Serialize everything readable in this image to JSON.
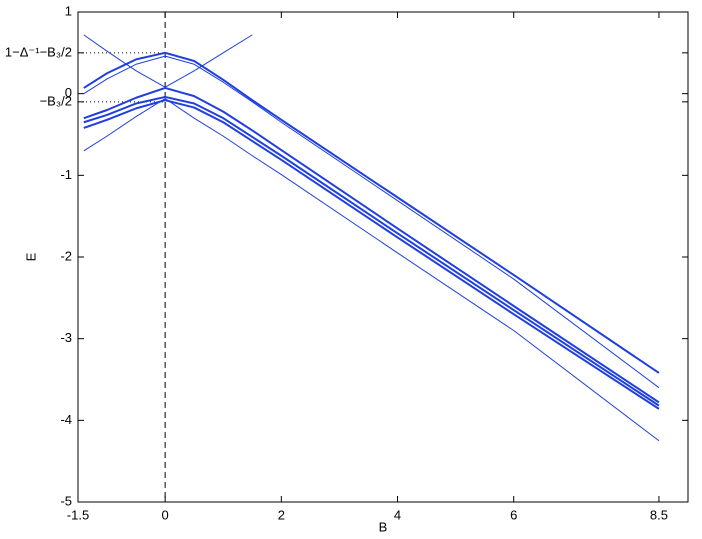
{
  "chart_data": {
    "type": "line",
    "x_label": "B",
    "y_label": "E",
    "x": [
      -1.4,
      -1,
      -0.5,
      0,
      0.5,
      1,
      1.5,
      2,
      4,
      6,
      8.5
    ],
    "series": [
      {
        "color": "#1f3fe0",
        "line_width": 2,
        "values": [
          0.07,
          0.25,
          0.42,
          0.5,
          0.4,
          0.17,
          -0.08,
          -0.32,
          -1.27,
          -2.22,
          -3.42
        ]
      },
      {
        "color": "#1f3fe0",
        "line_width": 1,
        "values": [
          0.72,
          0.52,
          0.28,
          0.08,
          0.28,
          0.5,
          0.72,
          null,
          null,
          null,
          null
        ]
      },
      {
        "color": "#1f3fe0",
        "line_width": 1,
        "values": [
          0.0,
          0.18,
          0.36,
          0.46,
          0.36,
          0.14,
          -0.1,
          -0.35,
          -1.31,
          -2.27,
          -3.6
        ]
      },
      {
        "color": "#1f3fe0",
        "line_width": 2,
        "values": [
          -0.3,
          -0.2,
          -0.05,
          0.07,
          -0.03,
          -0.22,
          -0.45,
          -0.69,
          -1.65,
          -2.6,
          -3.78
        ]
      },
      {
        "color": "#1f3fe0",
        "line_width": 2,
        "values": [
          -0.35,
          -0.26,
          -0.12,
          -0.04,
          -0.12,
          -0.3,
          -0.53,
          -0.76,
          -1.71,
          -2.65,
          -3.82
        ]
      },
      {
        "color": "#1f3fe0",
        "line_width": 2,
        "values": [
          -0.42,
          -0.32,
          -0.18,
          -0.08,
          -0.17,
          -0.35,
          -0.58,
          -0.81,
          -1.76,
          -2.7,
          -3.86
        ]
      },
      {
        "color": "#1f3fe0",
        "line_width": 1,
        "values": [
          -0.7,
          -0.52,
          -0.28,
          -0.06,
          -0.3,
          -0.52,
          -0.76,
          -0.99,
          -1.95,
          -2.9,
          -4.25
        ]
      }
    ],
    "xlim": [
      -1.5,
      9
    ],
    "ylim": [
      -5,
      1
    ],
    "xticks": [
      -1.5,
      0,
      2,
      4,
      6,
      8.5
    ],
    "yticks": [
      -5,
      -4,
      -3,
      -2,
      -1,
      {
        "value": -0.1,
        "label": "−B₃/2"
      },
      0,
      {
        "value": 0.5,
        "label": "1−Δ⁻¹−B₃/2"
      },
      1
    ],
    "reference_x": 0,
    "grid": false
  }
}
